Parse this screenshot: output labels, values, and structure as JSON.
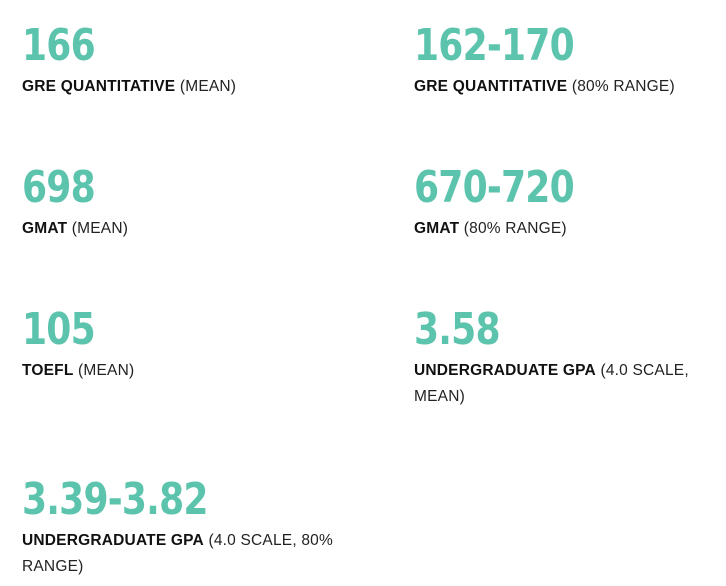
{
  "stats": [
    {
      "value": "166",
      "label_bold": "GRE QUANTITATIVE",
      "label_rest": "(MEAN)"
    },
    {
      "value": "162-170",
      "label_bold": "GRE QUANTITATIVE",
      "label_rest": "(80% RANGE)"
    },
    {
      "value": "698",
      "label_bold": "GMAT",
      "label_rest": "(MEAN)"
    },
    {
      "value": "670-720",
      "label_bold": "GMAT",
      "label_rest": "(80% RANGE)"
    },
    {
      "value": "105",
      "label_bold": "TOEFL",
      "label_rest": "(MEAN)"
    },
    {
      "value": "3.58",
      "label_bold": "UNDERGRADUATE GPA",
      "label_rest": "(4.0 SCALE, MEAN)"
    },
    {
      "value": "3.39-3.82",
      "label_bold": "UNDERGRADUATE GPA",
      "label_rest": "(4.0 SCALE, 80% RANGE)"
    }
  ],
  "colors": {
    "accent": "#5cc4ad",
    "text": "#1a1a1a",
    "background": "#ffffff"
  }
}
